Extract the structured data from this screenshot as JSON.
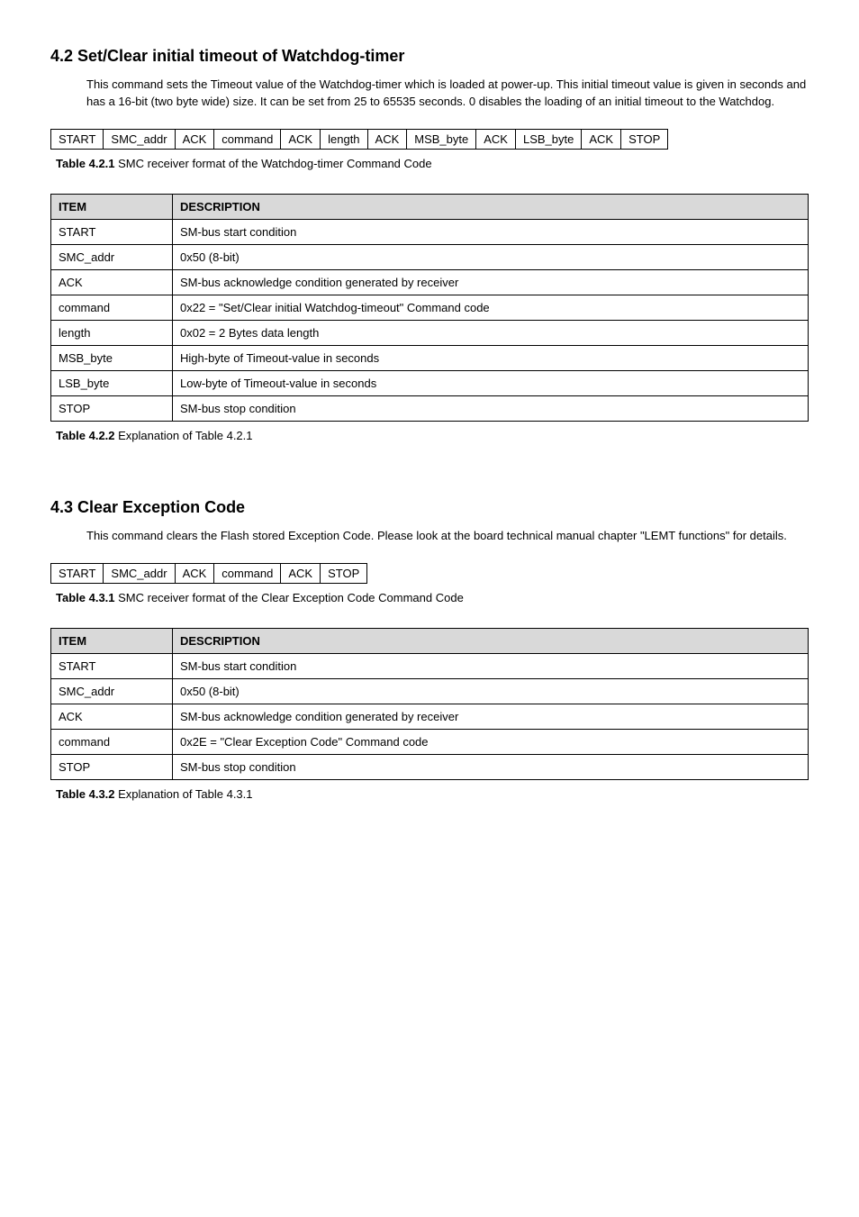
{
  "section_42": {
    "heading": "4.2  Set/Clear initial timeout of Watchdog-timer",
    "body": "This command sets the Timeout value of the Watchdog-timer which is loaded at power-up. This initial timeout value is given in seconds and has a 16-bit (two byte wide) size. It can be set from 25 to 65535 seconds. 0 disables the loading of an initial timeout to the Watchdog.",
    "seq_cells": [
      "START",
      "SMC_addr",
      "ACK",
      "command",
      "ACK",
      "length",
      "ACK",
      "MSB_byte",
      "ACK",
      "LSB_byte",
      "ACK",
      "STOP"
    ],
    "table421_label": "Table 4.2.1",
    "table421_caption": " SMC receiver format of the Watchdog-timer Command Code",
    "desc_header_item": "ITEM",
    "desc_header_desc": "DESCRIPTION",
    "desc_rows": [
      {
        "item": "START",
        "desc": "SM-bus start condition"
      },
      {
        "item": "SMC_addr",
        "desc": "0x50 (8-bit)"
      },
      {
        "item": "ACK",
        "desc": "SM-bus acknowledge condition generated by receiver"
      },
      {
        "item": "command",
        "desc": "0x22 = \"Set/Clear initial Watchdog-timeout\" Command code"
      },
      {
        "item": "length",
        "desc": "0x02 = 2 Bytes data length"
      },
      {
        "item": "MSB_byte",
        "desc": "High-byte of Timeout-value in seconds"
      },
      {
        "item": "LSB_byte",
        "desc": "Low-byte of Timeout-value in seconds"
      },
      {
        "item": "STOP",
        "desc": "SM-bus stop condition"
      }
    ],
    "table422_label": "Table 4.2.2",
    "table422_caption": " Explanation of Table 4.2.1"
  },
  "section_43": {
    "heading": "4.3  Clear Exception Code",
    "body": "This command clears the Flash stored Exception Code. Please look at the board technical manual chapter \"LEMT functions\" for details.",
    "seq_cells": [
      "START",
      "SMC_addr",
      "ACK",
      "command",
      "ACK",
      "STOP"
    ],
    "table431_label": "Table 4.3.1",
    "table431_caption": " SMC receiver format of the Clear Exception Code Command Code",
    "desc_header_item": "ITEM",
    "desc_header_desc": "DESCRIPTION",
    "desc_rows": [
      {
        "item": "START",
        "desc": "SM-bus start condition"
      },
      {
        "item": "SMC_addr",
        "desc": "0x50 (8-bit)"
      },
      {
        "item": "ACK",
        "desc": "SM-bus acknowledge condition generated by receiver"
      },
      {
        "item": "command",
        "desc": "0x2E = \"Clear Exception Code\" Command code"
      },
      {
        "item": "STOP",
        "desc": "SM-bus stop condition"
      }
    ],
    "table432_label": "Table 4.3.2",
    "table432_caption": " Explanation of Table 4.3.1"
  },
  "style": {
    "background": "#ffffff",
    "text_color": "#000000",
    "header_bg": "#d9d9d9",
    "border_color": "#000000",
    "heading_fontsize": 18,
    "body_fontsize": 13
  }
}
